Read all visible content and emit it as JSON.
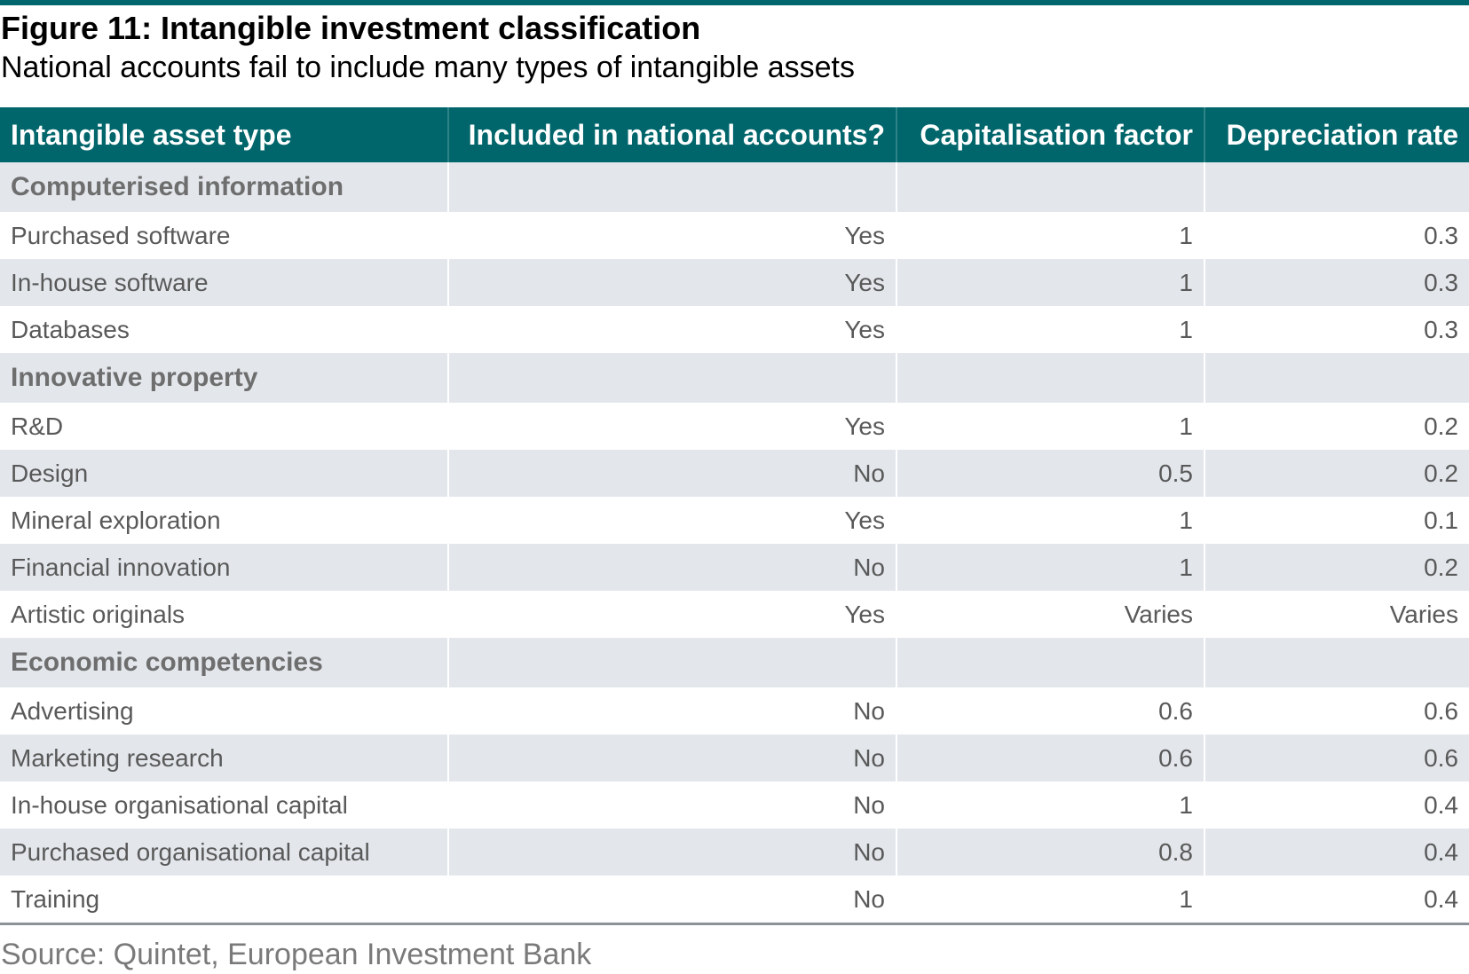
{
  "figure": {
    "title": "Figure 11: Intangible investment classification",
    "subtitle": "National accounts fail to include many types of intangible assets",
    "source": "Source: Quintet, European Investment Bank",
    "accent_color": "#00666b",
    "band_color": "#e3e7ec"
  },
  "table": {
    "headers": [
      "Intangible asset type",
      "Included in national accounts?",
      "Capitalisation factor",
      "Depreciation rate"
    ],
    "groups": [
      {
        "name": "Computerised information",
        "rows": [
          [
            "Purchased software",
            "Yes",
            "1",
            "0.3"
          ],
          [
            "In-house software",
            "Yes",
            "1",
            "0.3"
          ],
          [
            "Databases",
            "Yes",
            "1",
            "0.3"
          ]
        ]
      },
      {
        "name": "Innovative property",
        "rows": [
          [
            "R&D",
            "Yes",
            "1",
            "0.2"
          ],
          [
            "Design",
            "No",
            "0.5",
            "0.2"
          ],
          [
            "Mineral exploration",
            "Yes",
            "1",
            "0.1"
          ],
          [
            "Financial innovation",
            "No",
            "1",
            "0.2"
          ],
          [
            "Artistic originals",
            "Yes",
            "Varies",
            "Varies"
          ]
        ]
      },
      {
        "name": "Economic competencies",
        "rows": [
          [
            "Advertising",
            "No",
            "0.6",
            "0.6"
          ],
          [
            "Marketing research",
            "No",
            "0.6",
            "0.6"
          ],
          [
            "In-house organisational capital",
            "No",
            "1",
            "0.4"
          ],
          [
            "Purchased organisational capital",
            "No",
            "0.8",
            "0.4"
          ],
          [
            "Training",
            "No",
            "1",
            "0.4"
          ]
        ]
      }
    ]
  }
}
